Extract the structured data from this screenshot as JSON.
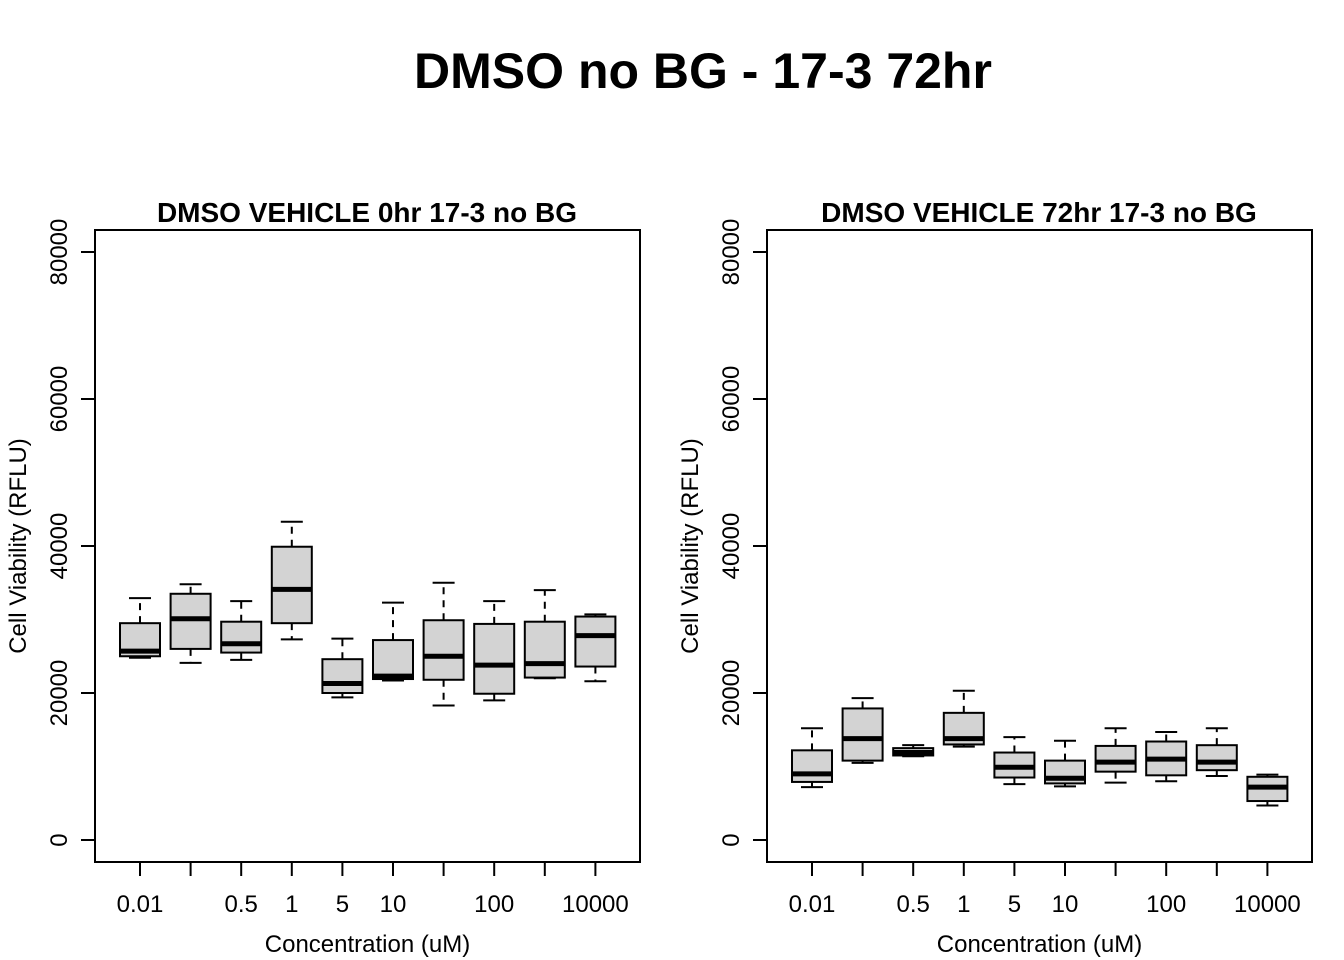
{
  "title": "DMSO no BG - 17-3 72hr",
  "chart_data": [
    {
      "type": "boxplot",
      "title": "DMSO VEHICLE 0hr 17-3 no BG",
      "xlabel": "Concentration (uM)",
      "ylabel": "Cell Viability (RFLU)",
      "ylim": [
        0,
        80000
      ],
      "yticks": [
        "0",
        "20000",
        "40000",
        "60000",
        "80000"
      ],
      "categories": [
        "0.01",
        "",
        "0.5",
        "1",
        "5",
        "10",
        "",
        "100",
        "",
        "10000"
      ],
      "boxes": [
        {
          "min": 24800,
          "q1": 25000,
          "median": 25700,
          "q3": 29500,
          "max": 32900
        },
        {
          "min": 24100,
          "q1": 26000,
          "median": 30100,
          "q3": 33500,
          "max": 34800
        },
        {
          "min": 24500,
          "q1": 25500,
          "median": 26700,
          "q3": 29700,
          "max": 32500
        },
        {
          "min": 27300,
          "q1": 29500,
          "median": 34100,
          "q3": 39900,
          "max": 43300
        },
        {
          "min": 19400,
          "q1": 20000,
          "median": 21300,
          "q3": 24600,
          "max": 27400
        },
        {
          "min": 21700,
          "q1": 21900,
          "median": 22300,
          "q3": 27200,
          "max": 32300
        },
        {
          "min": 18300,
          "q1": 21800,
          "median": 25000,
          "q3": 29900,
          "max": 35000
        },
        {
          "min": 19000,
          "q1": 19900,
          "median": 23800,
          "q3": 29400,
          "max": 32500
        },
        {
          "min": 22000,
          "q1": 22100,
          "median": 24000,
          "q3": 29700,
          "max": 34000
        },
        {
          "min": 21600,
          "q1": 23600,
          "median": 27800,
          "q3": 30400,
          "max": 30700
        }
      ]
    },
    {
      "type": "boxplot",
      "title": "DMSO VEHICLE 72hr 17-3 no BG",
      "xlabel": "Concentration (uM)",
      "ylabel": "Cell Viability (RFLU)",
      "ylim": [
        0,
        80000
      ],
      "yticks": [
        "0",
        "20000",
        "40000",
        "60000",
        "80000"
      ],
      "categories": [
        "0.01",
        "",
        "0.5",
        "1",
        "5",
        "10",
        "",
        "100",
        "",
        "10000"
      ],
      "boxes": [
        {
          "min": 7200,
          "q1": 7900,
          "median": 9000,
          "q3": 12200,
          "max": 15200
        },
        {
          "min": 10500,
          "q1": 10800,
          "median": 13800,
          "q3": 17900,
          "max": 19300
        },
        {
          "min": 11400,
          "q1": 11500,
          "median": 11900,
          "q3": 12500,
          "max": 12900
        },
        {
          "min": 12700,
          "q1": 13000,
          "median": 13800,
          "q3": 17300,
          "max": 20300
        },
        {
          "min": 7600,
          "q1": 8500,
          "median": 9900,
          "q3": 11900,
          "max": 14000
        },
        {
          "min": 7300,
          "q1": 7700,
          "median": 8400,
          "q3": 10800,
          "max": 13500
        },
        {
          "min": 7800,
          "q1": 9300,
          "median": 10600,
          "q3": 12800,
          "max": 15200
        },
        {
          "min": 8000,
          "q1": 8800,
          "median": 11000,
          "q3": 13400,
          "max": 14700
        },
        {
          "min": 8700,
          "q1": 9500,
          "median": 10600,
          "q3": 12900,
          "max": 15200
        },
        {
          "min": 4700,
          "q1": 5300,
          "median": 7200,
          "q3": 8600,
          "max": 8900
        }
      ]
    }
  ]
}
